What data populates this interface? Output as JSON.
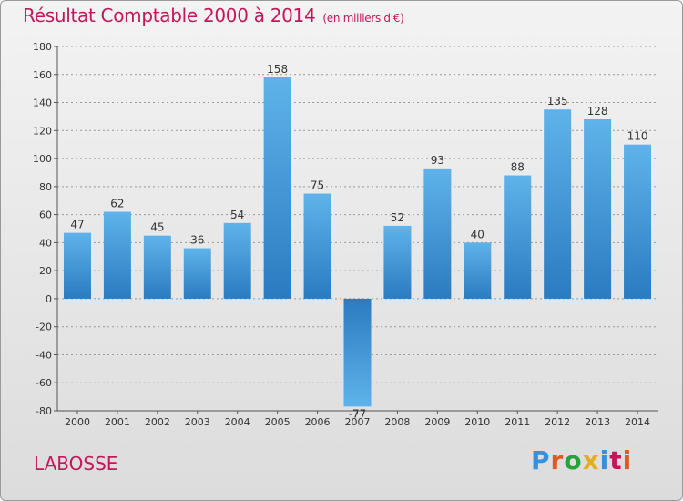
{
  "header": {
    "title": "Résultat Comptable 2000 à 2014",
    "unit": "(en milliers d'€)"
  },
  "footer": {
    "commune": "LABOSSE",
    "logo_text": "Proxiti"
  },
  "colors": {
    "title": "#c2185b",
    "bar_top": "#5fb3ea",
    "bar_bottom": "#2a7bc0",
    "logo": [
      "#3a8fd9",
      "#e05a20",
      "#2aa03a",
      "#e0b020",
      "#3a8fd9",
      "#c2185b",
      "#e05a20"
    ]
  },
  "chart_data": {
    "type": "bar",
    "title": "Résultat Comptable 2000 à 2014",
    "xlabel": "",
    "ylabel": "en milliers d'€",
    "categories": [
      "2000",
      "2001",
      "2002",
      "2003",
      "2004",
      "2005",
      "2006",
      "2007",
      "2008",
      "2009",
      "2010",
      "2011",
      "2012",
      "2013",
      "2014"
    ],
    "values": [
      47,
      62,
      45,
      36,
      54,
      158,
      75,
      -77,
      52,
      93,
      40,
      88,
      135,
      128,
      110
    ],
    "value_labels": [
      "47",
      "62",
      "45",
      "36",
      "54",
      "158",
      "75",
      "-77",
      "52",
      "93",
      "40",
      "88",
      "135",
      "128",
      "110"
    ],
    "ylim": [
      -80,
      180
    ],
    "yticks": [
      180,
      160,
      140,
      120,
      100,
      80,
      60,
      40,
      20,
      0,
      -20,
      -40,
      -60,
      -80
    ],
    "ytick_labels": [
      "180",
      "160",
      "140",
      "120",
      "100",
      "80",
      "60",
      "40",
      "20",
      "0",
      "-20",
      "-40",
      "-60",
      "-80"
    ],
    "grid": "horizontal dashed"
  }
}
